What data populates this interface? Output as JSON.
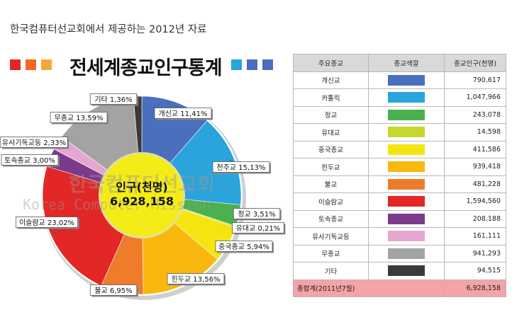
{
  "page_caption": "한국컴퓨터선교회에서 제공하는 2012년 자료",
  "chart_title": "전세계종교인구통계",
  "title_squares_left": [
    "#e32626",
    "#ee6a21",
    "#f4a83a"
  ],
  "title_squares_right": [
    "#2aa4db",
    "#4a6fbd",
    "#4a6fbd"
  ],
  "center_label": {
    "line1": "인구(천명)",
    "line2": "6,928,158"
  },
  "watermark": {
    "line1": "한국컴퓨터선교회",
    "line2": "Korea Computer Mission"
  },
  "chart_data": {
    "type": "pie",
    "title": "전세계종교인구통계",
    "unit": "천명",
    "total": "6,928,158",
    "slices": [
      {
        "label": "개신교",
        "pct": "11,41%",
        "value": 790617,
        "color": "#4a6fbd"
      },
      {
        "label": "천주교",
        "pct": "15,13%",
        "value": 1047966,
        "color": "#2aa4db"
      },
      {
        "label": "정교",
        "pct": "3,51%",
        "value": 243078,
        "color": "#4cb050"
      },
      {
        "label": "유대교",
        "pct": "0,21%",
        "value": 14598,
        "color": "#c6d82e"
      },
      {
        "label": "중국종교",
        "pct": "5,94%",
        "value": 411586,
        "color": "#f4e511"
      },
      {
        "label": "힌두교",
        "pct": "13,56%",
        "value": 939418,
        "color": "#f8b80e"
      },
      {
        "label": "불교",
        "pct": "6,95%",
        "value": 481228,
        "color": "#ee7c2a"
      },
      {
        "label": "이슬람교",
        "pct": "23,02%",
        "value": 1594560,
        "color": "#e32626"
      },
      {
        "label": "토속종교",
        "pct": "3,00%",
        "value": 208188,
        "color": "#7b3a8c"
      },
      {
        "label": "유사기독교등",
        "pct": "2,33%",
        "value": 161111,
        "color": "#e7a6cf"
      },
      {
        "label": "무종교",
        "pct": "13,59%",
        "value": 941293,
        "color": "#a3a3a3"
      },
      {
        "label": "기타",
        "pct": "1,36%",
        "value": 94515,
        "color": "#3a3a3a"
      }
    ]
  },
  "table": {
    "headers": [
      "주요종교",
      "종교색깔",
      "종교인구(천명)"
    ],
    "rows": [
      {
        "name": "개신교",
        "color": "#4a6fbd",
        "value": "790,617"
      },
      {
        "name": "카톨릭",
        "color": "#2aa4db",
        "value": "1,047,966"
      },
      {
        "name": "정교",
        "color": "#4cb050",
        "value": "243,078"
      },
      {
        "name": "유대교",
        "color": "#c6d82e",
        "value": "14,598"
      },
      {
        "name": "중국종교",
        "color": "#f4e511",
        "value": "411,586"
      },
      {
        "name": "힌두교",
        "color": "#f8b80e",
        "value": "939,418"
      },
      {
        "name": "불교",
        "color": "#ee7c2a",
        "value": "481,228"
      },
      {
        "name": "이슬람교",
        "color": "#e32626",
        "value": "1,594,560"
      },
      {
        "name": "토속종교",
        "color": "#7b3a8c",
        "value": "208,188"
      },
      {
        "name": "유사기독교등",
        "color": "#e7a6cf",
        "value": "161,111"
      },
      {
        "name": "무종교",
        "color": "#a3a3a3",
        "value": "941,293"
      },
      {
        "name": "기타",
        "color": "#3a3a3a",
        "value": "94,515"
      }
    ],
    "total": {
      "name": "총합계(2011년7월)",
      "value": "6,928,158"
    }
  }
}
